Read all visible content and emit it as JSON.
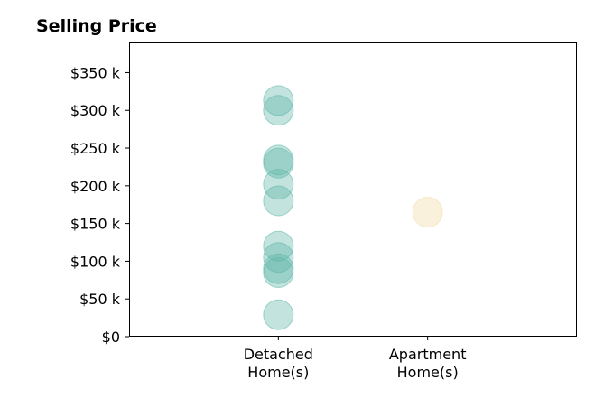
{
  "chart_data": {
    "type": "scatter",
    "title": "Selling Price",
    "xlabel": "",
    "ylabel": "",
    "categories": [
      [
        "Detached",
        "Home(s)"
      ],
      [
        "Apartment",
        "Home(s)"
      ]
    ],
    "xlim": [
      -1,
      2
    ],
    "ylim": [
      0,
      390000
    ],
    "yticks": [
      0,
      50000,
      100000,
      150000,
      200000,
      250000,
      300000,
      350000
    ],
    "ytick_labels": [
      "$0",
      "$50 k",
      "$100 k",
      "$150 k",
      "$200 k",
      "$250 k",
      "$300 k",
      "$350 k"
    ],
    "grid": false,
    "series": [
      {
        "category_index": 0,
        "color": "#5fb6a8",
        "values": [
          29000,
          85000,
          90000,
          105000,
          120000,
          180000,
          202000,
          230000,
          234000,
          300000,
          313000
        ]
      },
      {
        "category_index": 1,
        "color": "#f3d9a4",
        "values": [
          165000
        ]
      }
    ]
  }
}
